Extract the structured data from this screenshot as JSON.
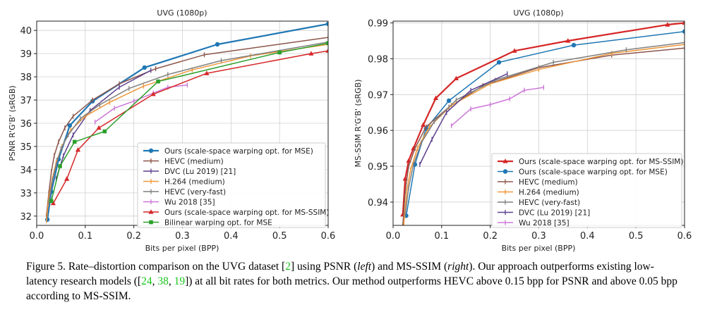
{
  "figure_caption": {
    "p1": "Figure 5. Rate–distortion comparison on the UVG dataset [",
    "c1": "2",
    "p2": "] using PSNR (",
    "left": "left",
    "p3": ") and MS-SSIM (",
    "right": "right",
    "p4": "). Our approach outperforms existing low-latency research models ([",
    "c2": "24",
    "sep1": ", ",
    "c3": "38",
    "sep2": ", ",
    "c4": "19",
    "p5": "]) at all bit rates for both metrics. Our method outperforms HEVC above 0.15 bpp for PSNR and above 0.05 bpp according to MS-SSIM."
  },
  "chart_data": [
    {
      "type": "line",
      "title": "UVG (1080p)",
      "xlabel": "Bits per pixel (BPP)",
      "ylabel": "PSNR R'G'B' (sRGB)",
      "xlim": [
        0.0,
        0.6
      ],
      "ylim": [
        31.6,
        40.4
      ],
      "xticks": [
        "0.0",
        "0.1",
        "0.2",
        "0.3",
        "0.4",
        "0.5",
        "0.6"
      ],
      "xtick_values": [
        0.0,
        0.1,
        0.2,
        0.3,
        0.4,
        0.5,
        0.6
      ],
      "yticks": [
        "32",
        "33",
        "34",
        "35",
        "36",
        "37",
        "38",
        "39",
        "40"
      ],
      "ytick_values": [
        32,
        33,
        34,
        35,
        36,
        37,
        38,
        39,
        40
      ],
      "grid": true,
      "legend_position": "lower-right",
      "series": [
        {
          "name": "Ours (scale-space warping opt. for MSE)",
          "color": "#1f77b4",
          "marker": "o",
          "lw": 2.2,
          "x": [
            0.022,
            0.03,
            0.045,
            0.068,
            0.115,
            0.222,
            0.372,
            0.6
          ],
          "y": [
            31.85,
            33.05,
            34.45,
            35.9,
            36.95,
            38.4,
            39.4,
            40.28
          ]
        },
        {
          "name": "HEVC (medium)",
          "color": "#8c564b",
          "marker": "|",
          "lw": 1.5,
          "x": [
            0.02,
            0.025,
            0.03,
            0.036,
            0.045,
            0.058,
            0.075,
            0.115,
            0.17,
            0.245,
            0.345,
            0.6
          ],
          "y": [
            32.0,
            33.0,
            33.9,
            34.6,
            35.2,
            35.8,
            36.3,
            37.0,
            37.7,
            38.35,
            38.95,
            39.7
          ]
        },
        {
          "name": "DVC (Lu 2019) [21]",
          "color": "#5b3f8c",
          "marker": "|",
          "lw": 1.5,
          "x": [
            0.04,
            0.055,
            0.075,
            0.11,
            0.17,
            0.235
          ],
          "y": [
            33.6,
            34.6,
            35.5,
            36.55,
            37.55,
            38.28
          ]
        },
        {
          "name": "H.264 (medium)",
          "color": "#f0983a",
          "marker": "|",
          "lw": 1.5,
          "x": [
            0.02,
            0.025,
            0.032,
            0.04,
            0.052,
            0.07,
            0.1,
            0.15,
            0.22,
            0.32,
            0.44,
            0.6
          ],
          "y": [
            31.8,
            32.8,
            33.6,
            34.3,
            35.0,
            35.7,
            36.3,
            36.9,
            37.6,
            38.3,
            38.9,
            39.4
          ]
        },
        {
          "name": "HEVC (very-fast)",
          "color": "#7f7f7f",
          "marker": "|",
          "lw": 1.5,
          "x": [
            0.025,
            0.032,
            0.04,
            0.05,
            0.065,
            0.09,
            0.13,
            0.19,
            0.27,
            0.38,
            0.6
          ],
          "y": [
            32.6,
            33.5,
            34.2,
            34.9,
            35.5,
            36.2,
            36.8,
            37.5,
            38.1,
            38.7,
            39.5
          ]
        },
        {
          "name": "Wu 2018 [35]",
          "color": "#cc77d8",
          "marker": "|",
          "lw": 1.5,
          "x": [
            0.12,
            0.16,
            0.2,
            0.24,
            0.27,
            0.31
          ],
          "y": [
            36.05,
            36.65,
            36.95,
            37.3,
            37.55,
            37.65
          ]
        },
        {
          "name": "Ours (scale-space warping opt. for MS-SSIM)",
          "color": "#d62728",
          "marker": "^",
          "lw": 1.5,
          "x": [
            0.034,
            0.062,
            0.085,
            0.128,
            0.24,
            0.35,
            0.565,
            0.6
          ],
          "y": [
            32.55,
            33.6,
            34.85,
            35.8,
            37.25,
            38.15,
            39.0,
            39.12
          ]
        },
        {
          "name": "Bilinear warping opt. for MSE",
          "color": "#2ca02c",
          "marker": "s",
          "lw": 1.5,
          "x": [
            0.03,
            0.048,
            0.078,
            0.14,
            0.25,
            0.5,
            0.6
          ],
          "y": [
            32.65,
            34.15,
            35.2,
            35.65,
            37.8,
            39.05,
            39.45
          ]
        }
      ]
    },
    {
      "type": "line",
      "title": "UVG (1080p)",
      "xlabel": "Bits per pixel (BPP)",
      "ylabel": "MS-SSIM R'G'B' (sRGB)",
      "xlim": [
        0.0,
        0.6
      ],
      "ylim": [
        0.9335,
        0.9905
      ],
      "xticks": [
        "0.0",
        "0.1",
        "0.2",
        "0.3",
        "0.4",
        "0.5",
        "0.6"
      ],
      "xtick_values": [
        0.0,
        0.1,
        0.2,
        0.3,
        0.4,
        0.5,
        0.6
      ],
      "yticks": [
        "0.94",
        "0.95",
        "0.96",
        "0.97",
        "0.98",
        "0.99"
      ],
      "ytick_values": [
        0.94,
        0.95,
        0.96,
        0.97,
        0.98,
        0.99
      ],
      "grid": true,
      "legend_position": "lower-right",
      "series": [
        {
          "name": "Ours (scale-space warping opt. for MS-SSIM)",
          "color": "#d62728",
          "marker": "^",
          "lw": 2.2,
          "x": [
            0.02,
            0.025,
            0.032,
            0.042,
            0.062,
            0.088,
            0.13,
            0.25,
            0.36,
            0.565,
            0.6
          ],
          "y": [
            0.9365,
            0.9465,
            0.9515,
            0.955,
            0.9615,
            0.969,
            0.9745,
            0.9822,
            0.985,
            0.9895,
            0.99
          ]
        },
        {
          "name": "Ours (scale-space warping opt. for MSE)",
          "color": "#1f77b4",
          "marker": "o",
          "lw": 1.5,
          "x": [
            0.027,
            0.045,
            0.068,
            0.115,
            0.218,
            0.372,
            0.6
          ],
          "y": [
            0.9362,
            0.9505,
            0.9605,
            0.9683,
            0.979,
            0.9838,
            0.9876
          ]
        },
        {
          "name": "HEVC (medium)",
          "color": "#8c564b",
          "marker": "|",
          "lw": 1.5,
          "x": [
            0.02,
            0.025,
            0.032,
            0.045,
            0.068,
            0.115,
            0.185,
            0.3,
            0.45,
            0.6
          ],
          "y": [
            0.9335,
            0.943,
            0.95,
            0.955,
            0.961,
            0.9665,
            0.9725,
            0.9775,
            0.981,
            0.983
          ]
        },
        {
          "name": "H.264 (medium)",
          "color": "#f0983a",
          "marker": "|",
          "lw": 1.5,
          "x": [
            0.022,
            0.028,
            0.036,
            0.05,
            0.075,
            0.12,
            0.2,
            0.3,
            0.45,
            0.6
          ],
          "y": [
            0.9335,
            0.943,
            0.949,
            0.955,
            0.961,
            0.967,
            0.973,
            0.977,
            0.9815,
            0.984
          ]
        },
        {
          "name": "HEVC (very-fast)",
          "color": "#7f7f7f",
          "marker": "|",
          "lw": 1.5,
          "x": [
            0.025,
            0.032,
            0.042,
            0.058,
            0.085,
            0.13,
            0.21,
            0.33,
            0.48,
            0.6
          ],
          "y": [
            0.9365,
            0.944,
            0.9505,
            0.9565,
            0.9625,
            0.9685,
            0.974,
            0.979,
            0.9825,
            0.9845
          ]
        },
        {
          "name": "DVC (Lu 2019) [21]",
          "color": "#5b3f8c",
          "marker": "|",
          "lw": 1.5,
          "x": [
            0.055,
            0.08,
            0.11,
            0.16,
            0.235
          ],
          "y": [
            0.9505,
            0.9575,
            0.965,
            0.9712,
            0.9758
          ]
        },
        {
          "name": "Wu 2018 [35]",
          "color": "#cc77d8",
          "marker": "|",
          "lw": 1.5,
          "x": [
            0.12,
            0.16,
            0.2,
            0.24,
            0.27,
            0.31
          ],
          "y": [
            0.9613,
            0.966,
            0.9672,
            0.9688,
            0.9712,
            0.972
          ]
        }
      ]
    }
  ]
}
